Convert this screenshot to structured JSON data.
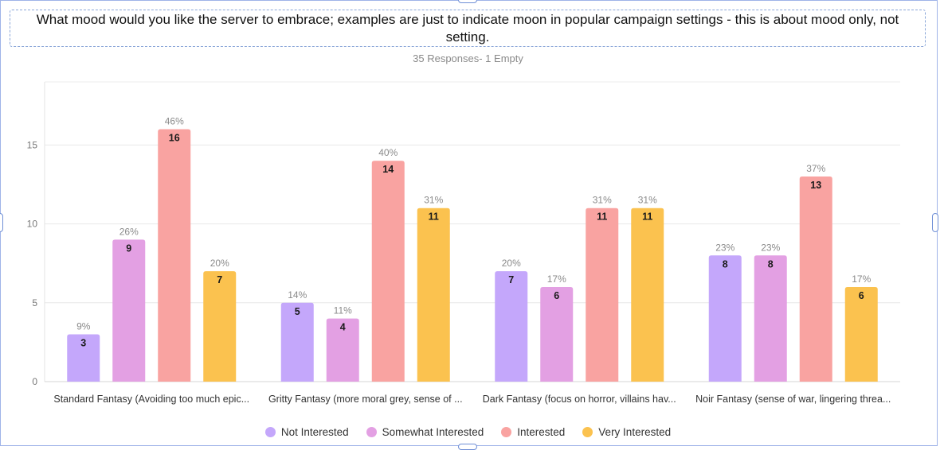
{
  "question": {
    "title": "What mood would you like the server to embrace; examples are just to indicate moon in popular campaign settings - this is about mood only, not setting.",
    "responses": "35 Responses- 1 Empty"
  },
  "colors": {
    "not_interested": "#c4a7fb",
    "somewhat_interested": "#e3a0e3",
    "interested": "#f9a3a1",
    "very_interested": "#fbc24f"
  },
  "chart_data": {
    "type": "bar",
    "title": "",
    "xlabel": "",
    "ylabel": "",
    "ylim": [
      0,
      19
    ],
    "yticks": [
      0,
      5,
      10,
      15
    ],
    "grid": true,
    "legend_position": "bottom",
    "categories": [
      "Standard Fantasy (Avoiding too much epic...",
      "Gritty Fantasy (more moral grey, sense of ...",
      "Dark Fantasy (focus on horror, villains hav...",
      "Noir Fantasy (sense of war, lingering threa..."
    ],
    "series": [
      {
        "name": "Not Interested",
        "color": "#c4a7fb",
        "values": [
          3,
          5,
          7,
          8
        ],
        "percent_labels": [
          "9%",
          "14%",
          "20%",
          "23%"
        ]
      },
      {
        "name": "Somewhat Interested",
        "color": "#e3a0e3",
        "values": [
          9,
          4,
          6,
          8
        ],
        "percent_labels": [
          "26%",
          "11%",
          "17%",
          "23%"
        ]
      },
      {
        "name": "Interested",
        "color": "#f9a3a1",
        "values": [
          16,
          14,
          11,
          13
        ],
        "percent_labels": [
          "46%",
          "40%",
          "31%",
          "37%"
        ]
      },
      {
        "name": "Very Interested",
        "color": "#fbc24f",
        "values": [
          7,
          11,
          11,
          6
        ],
        "percent_labels": [
          "20%",
          "31%",
          "31%",
          "17%"
        ]
      }
    ]
  }
}
